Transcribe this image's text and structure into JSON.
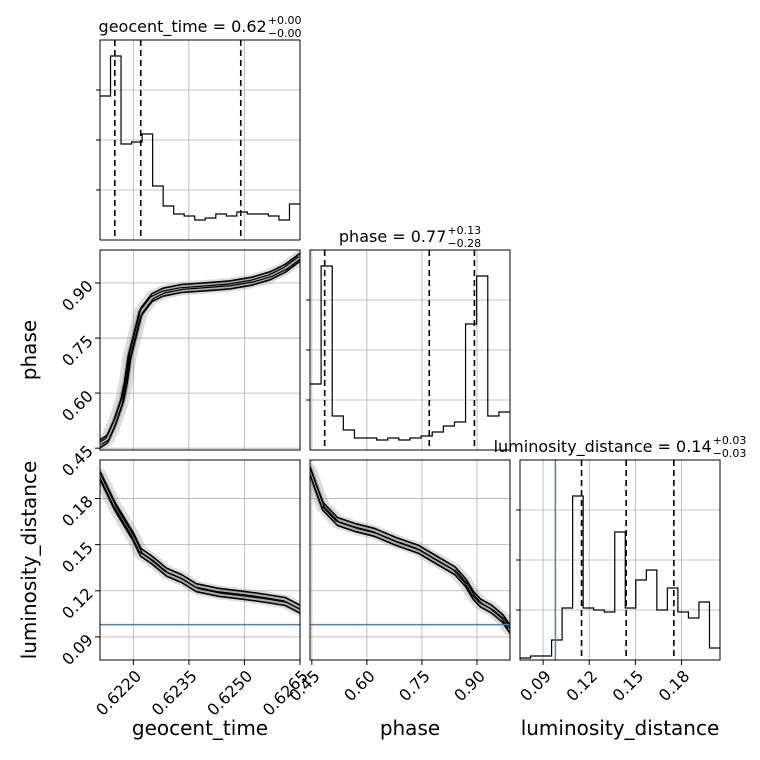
{
  "chart_data": {
    "type": "corner",
    "parameters": [
      "geocent_time",
      "phase",
      "luminosity_distance"
    ],
    "xlabels": [
      "geocent_time",
      "phase",
      "luminosity_distance"
    ],
    "ylabels": [
      "",
      "phase",
      "luminosity_distance"
    ],
    "titles": [
      {
        "param": "geocent_time",
        "text": "geocent_time = 0.62",
        "plus": "+0.00",
        "minus": "−0.00"
      },
      {
        "param": "phase",
        "text": "phase = 0.77",
        "plus": "+0.13",
        "minus": "−0.28"
      },
      {
        "param": "luminosity_distance",
        "text": "luminosity_distance = 0.14",
        "plus": "+0.03",
        "minus": "−0.03"
      }
    ],
    "ticks": {
      "geocent_time": {
        "values": [
          0.622,
          0.6235,
          0.625,
          0.6265
        ],
        "labels": [
          "0.6220",
          "0.6235",
          "0.6250",
          "0.6265"
        ]
      },
      "phase": {
        "values": [
          0.45,
          0.6,
          0.75,
          0.9
        ],
        "labels": [
          "0.45",
          "0.60",
          "0.75",
          "0.90"
        ]
      },
      "luminosity_distance": {
        "values": [
          0.09,
          0.12,
          0.15,
          0.18
        ],
        "labels": [
          "0.09",
          "0.12",
          "0.15",
          "0.18"
        ]
      }
    },
    "ranges": {
      "geocent_time": [
        0.6211,
        0.6265
      ],
      "phase": [
        0.445,
        0.99
      ],
      "luminosity_distance": [
        0.075,
        0.205
      ]
    },
    "truth": {
      "luminosity_distance": 0.098
    },
    "truth_color": "#4682b4",
    "grid": true,
    "histograms": {
      "geocent_time": {
        "counts": [
          0.72,
          0.92,
          0.48,
          0.49,
          0.53,
          0.27,
          0.17,
          0.13,
          0.12,
          0.1,
          0.11,
          0.13,
          0.12,
          0.14,
          0.13,
          0.13,
          0.12,
          0.1,
          0.18
        ],
        "quantiles": [
          0.6215,
          0.6222,
          0.6249
        ]
      },
      "phase": {
        "counts": [
          0.33,
          0.92,
          0.17,
          0.1,
          0.06,
          0.06,
          0.05,
          0.06,
          0.05,
          0.06,
          0.07,
          0.09,
          0.12,
          0.14,
          0.63,
          0.87,
          0.17,
          0.19
        ],
        "quantiles": [
          0.485,
          0.77,
          0.893
        ]
      },
      "luminosity_distance": {
        "counts": [
          0.01,
          0.02,
          0.02,
          0.1,
          0.26,
          0.82,
          0.26,
          0.25,
          0.24,
          0.64,
          0.26,
          0.4,
          0.45,
          0.25,
          0.36,
          0.24,
          0.21,
          0.29,
          0.06
        ],
        "quantiles": [
          0.115,
          0.144,
          0.175
        ]
      }
    },
    "contours": [
      {
        "x": "geocent_time",
        "y": "phase",
        "path": [
          [
            0.6211,
            0.462
          ],
          [
            0.6213,
            0.475
          ],
          [
            0.6215,
            0.52
          ],
          [
            0.6217,
            0.58
          ],
          [
            0.6218,
            0.63
          ],
          [
            0.6219,
            0.7
          ],
          [
            0.62205,
            0.76
          ],
          [
            0.6222,
            0.82
          ],
          [
            0.6225,
            0.86
          ],
          [
            0.6228,
            0.875
          ],
          [
            0.6233,
            0.885
          ],
          [
            0.624,
            0.89
          ],
          [
            0.6246,
            0.895
          ],
          [
            0.6252,
            0.905
          ],
          [
            0.6257,
            0.92
          ],
          [
            0.6261,
            0.94
          ],
          [
            0.6265,
            0.97
          ]
        ]
      },
      {
        "x": "geocent_time",
        "y": "luminosity_distance",
        "path": [
          [
            0.6211,
            0.195
          ],
          [
            0.6213,
            0.185
          ],
          [
            0.6215,
            0.175
          ],
          [
            0.6218,
            0.163
          ],
          [
            0.622,
            0.155
          ],
          [
            0.6222,
            0.145
          ],
          [
            0.6225,
            0.14
          ],
          [
            0.6229,
            0.132
          ],
          [
            0.6233,
            0.128
          ],
          [
            0.6237,
            0.122
          ],
          [
            0.6243,
            0.119
          ],
          [
            0.625,
            0.117
          ],
          [
            0.6256,
            0.115
          ],
          [
            0.6261,
            0.113
          ],
          [
            0.6265,
            0.108
          ]
        ]
      },
      {
        "x": "phase",
        "y": "luminosity_distance",
        "path": [
          [
            0.445,
            0.198
          ],
          [
            0.46,
            0.188
          ],
          [
            0.48,
            0.175
          ],
          [
            0.52,
            0.165
          ],
          [
            0.57,
            0.161
          ],
          [
            0.62,
            0.158
          ],
          [
            0.68,
            0.152
          ],
          [
            0.74,
            0.147
          ],
          [
            0.79,
            0.14
          ],
          [
            0.84,
            0.133
          ],
          [
            0.87,
            0.125
          ],
          [
            0.89,
            0.117
          ],
          [
            0.91,
            0.112
          ],
          [
            0.94,
            0.108
          ],
          [
            0.97,
            0.102
          ],
          [
            0.99,
            0.095
          ]
        ]
      }
    ]
  }
}
